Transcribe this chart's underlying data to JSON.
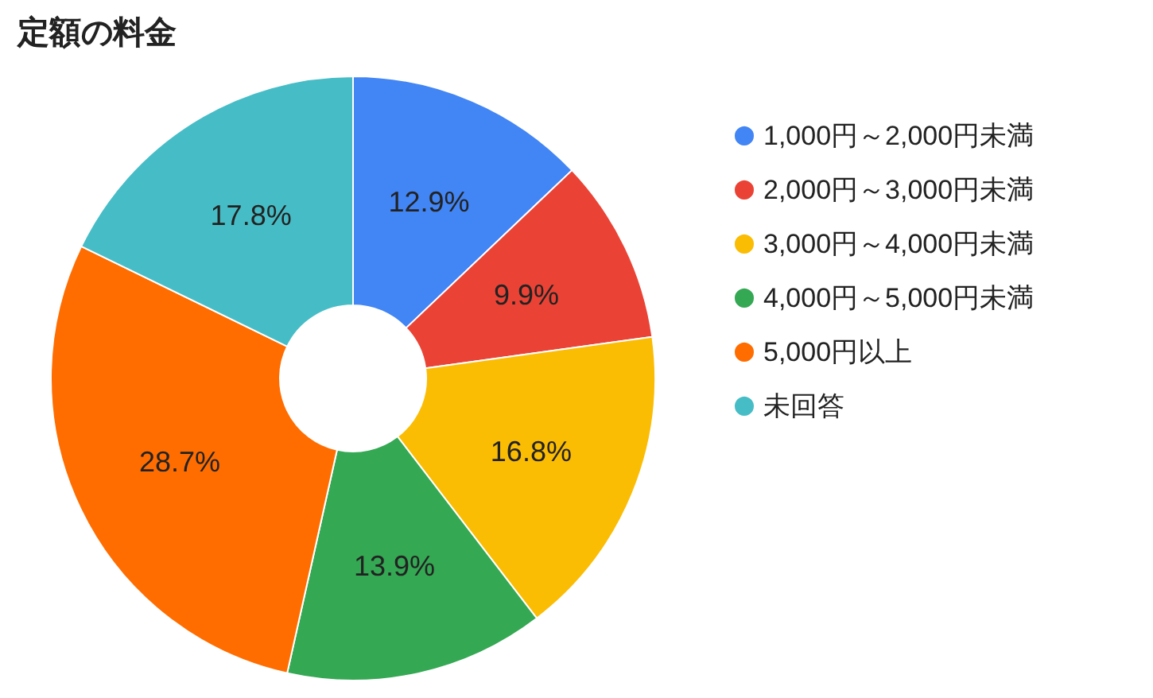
{
  "chart_data": {
    "type": "donut",
    "title": "定額の料金",
    "categories": [
      "1,000円～2,000円未満",
      "2,000円～3,000円未満",
      "3,000円～4,000円未満",
      "4,000円～5,000円未満",
      "5,000円以上",
      "未回答"
    ],
    "values": [
      12.9,
      9.9,
      16.8,
      13.9,
      28.7,
      17.8
    ],
    "colors": [
      "#4285f4",
      "#ea4335",
      "#fbbc04",
      "#34a853",
      "#ff6d01",
      "#46bdc6"
    ],
    "value_labels": [
      "12.9%",
      "9.9%",
      "16.8%",
      "13.9%",
      "28.7%",
      "17.8%"
    ],
    "legend": "top right"
  }
}
